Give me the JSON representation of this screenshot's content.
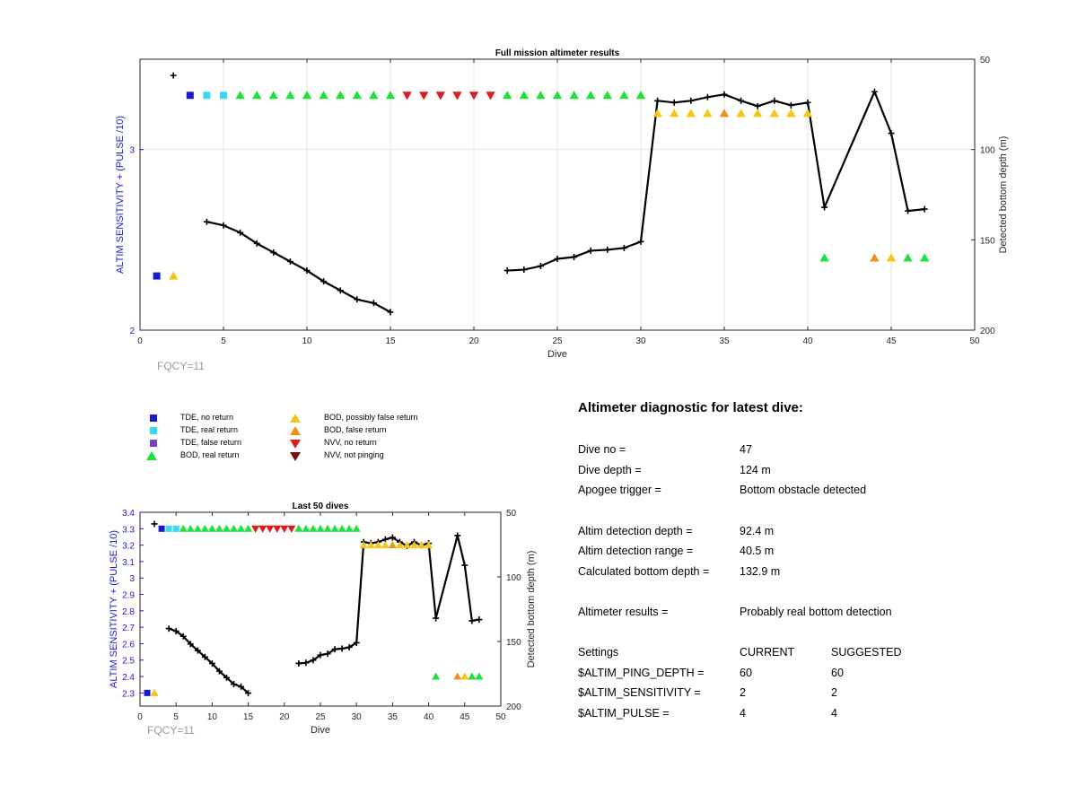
{
  "colors": {
    "tde_no_return": "#1a1acd",
    "tde_real_return": "#3ad9f2",
    "tde_false_return": "#7a3ec8",
    "bod_real_return": "#1ee23c",
    "bod_possibly_false": "#f5c518",
    "bod_false_return": "#f09018",
    "nvv_no_return": "#d81e1e",
    "nvv_not_pinging": "#7a0c0c",
    "depth_line": "#000000",
    "left_axis": "#1a1acd"
  },
  "legend": {
    "items": [
      {
        "label": "TDE, no return",
        "marker": "square",
        "color_key": "tde_no_return"
      },
      {
        "label": "TDE, real return",
        "marker": "square",
        "color_key": "tde_real_return"
      },
      {
        "label": "TDE, false return",
        "marker": "square",
        "color_key": "tde_false_return"
      },
      {
        "label": "BOD, real return",
        "marker": "triangle-up",
        "color_key": "bod_real_return"
      },
      {
        "label": "BOD, possibly false return",
        "marker": "triangle-up",
        "color_key": "bod_possibly_false"
      },
      {
        "label": "BOD, false return",
        "marker": "triangle-up",
        "color_key": "bod_false_return"
      },
      {
        "label": "NVV, no return",
        "marker": "triangle-down",
        "color_key": "nvv_no_return"
      },
      {
        "label": "NVV, not pinging",
        "marker": "triangle-down",
        "color_key": "nvv_not_pinging"
      }
    ]
  },
  "chart_data": [
    {
      "type": "scatter",
      "title": "Full mission altimeter results",
      "xlabel": "Dive",
      "ylabel": "ALTIM SENSITIVITY + (PULSE /10)",
      "y2label": "Detected bottom depth (m)",
      "annotation": "FQCY=11",
      "xlim": [
        0,
        50
      ],
      "ylim": [
        2,
        3.5
      ],
      "y2lim": [
        200,
        50
      ],
      "y2_reversed": true,
      "xticks": [
        0,
        5,
        10,
        15,
        20,
        25,
        30,
        35,
        40,
        45,
        50
      ],
      "yticks": [
        2,
        3
      ],
      "y2ticks": [
        50,
        100,
        150,
        200
      ],
      "grid": true
    },
    {
      "type": "scatter",
      "title": "Last 50 dives",
      "xlabel": "Dive",
      "ylabel": "ALTIM SENSITIVITY + (PULSE /10)",
      "y2label": "Detected bottom depth (m)",
      "annotation": "FQCY=11",
      "xlim": [
        0,
        50
      ],
      "ylim": [
        2.22,
        3.4
      ],
      "y2lim": [
        200,
        50
      ],
      "y2_reversed": true,
      "xticks": [
        0,
        5,
        10,
        15,
        20,
        25,
        30,
        35,
        40,
        45,
        50
      ],
      "yticks": [
        2.3,
        2.4,
        2.5,
        2.6,
        2.7,
        2.8,
        2.9,
        3,
        3.1,
        3.2,
        3.3,
        3.4
      ],
      "y2ticks": [
        50,
        100,
        150,
        200
      ],
      "grid": false
    }
  ],
  "series": {
    "markers": [
      {
        "dive": 1,
        "setting": 2.3,
        "status": "tde_no_return",
        "marker": "square"
      },
      {
        "dive": 2,
        "setting": 2.3,
        "status": "bod_possibly_false",
        "marker": "triangle-up"
      },
      {
        "dive": 3,
        "setting": 3.3,
        "status": "tde_no_return",
        "marker": "square"
      },
      {
        "dive": 4,
        "setting": 3.3,
        "status": "tde_real_return",
        "marker": "square"
      },
      {
        "dive": 5,
        "setting": 3.3,
        "status": "tde_real_return",
        "marker": "square"
      },
      {
        "dive": 6,
        "setting": 3.3,
        "status": "bod_real_return",
        "marker": "triangle-up"
      },
      {
        "dive": 7,
        "setting": 3.3,
        "status": "bod_real_return",
        "marker": "triangle-up"
      },
      {
        "dive": 8,
        "setting": 3.3,
        "status": "bod_real_return",
        "marker": "triangle-up"
      },
      {
        "dive": 9,
        "setting": 3.3,
        "status": "bod_real_return",
        "marker": "triangle-up"
      },
      {
        "dive": 10,
        "setting": 3.3,
        "status": "bod_real_return",
        "marker": "triangle-up"
      },
      {
        "dive": 11,
        "setting": 3.3,
        "status": "bod_real_return",
        "marker": "triangle-up"
      },
      {
        "dive": 12,
        "setting": 3.3,
        "status": "bod_real_return",
        "marker": "triangle-up"
      },
      {
        "dive": 13,
        "setting": 3.3,
        "status": "bod_real_return",
        "marker": "triangle-up"
      },
      {
        "dive": 14,
        "setting": 3.3,
        "status": "bod_real_return",
        "marker": "triangle-up"
      },
      {
        "dive": 15,
        "setting": 3.3,
        "status": "bod_real_return",
        "marker": "triangle-up"
      },
      {
        "dive": 16,
        "setting": 3.3,
        "status": "nvv_no_return",
        "marker": "triangle-down"
      },
      {
        "dive": 17,
        "setting": 3.3,
        "status": "nvv_no_return",
        "marker": "triangle-down"
      },
      {
        "dive": 18,
        "setting": 3.3,
        "status": "nvv_no_return",
        "marker": "triangle-down"
      },
      {
        "dive": 19,
        "setting": 3.3,
        "status": "nvv_no_return",
        "marker": "triangle-down"
      },
      {
        "dive": 20,
        "setting": 3.3,
        "status": "nvv_no_return",
        "marker": "triangle-down"
      },
      {
        "dive": 21,
        "setting": 3.3,
        "status": "nvv_no_return",
        "marker": "triangle-down"
      },
      {
        "dive": 22,
        "setting": 3.3,
        "status": "bod_real_return",
        "marker": "triangle-up"
      },
      {
        "dive": 23,
        "setting": 3.3,
        "status": "bod_real_return",
        "marker": "triangle-up"
      },
      {
        "dive": 24,
        "setting": 3.3,
        "status": "bod_real_return",
        "marker": "triangle-up"
      },
      {
        "dive": 25,
        "setting": 3.3,
        "status": "bod_real_return",
        "marker": "triangle-up"
      },
      {
        "dive": 26,
        "setting": 3.3,
        "status": "bod_real_return",
        "marker": "triangle-up"
      },
      {
        "dive": 27,
        "setting": 3.3,
        "status": "bod_real_return",
        "marker": "triangle-up"
      },
      {
        "dive": 28,
        "setting": 3.3,
        "status": "bod_real_return",
        "marker": "triangle-up"
      },
      {
        "dive": 29,
        "setting": 3.3,
        "status": "bod_real_return",
        "marker": "triangle-up"
      },
      {
        "dive": 30,
        "setting": 3.3,
        "status": "bod_real_return",
        "marker": "triangle-up"
      },
      {
        "dive": 31,
        "setting": 3.2,
        "status": "bod_possibly_false",
        "marker": "triangle-up"
      },
      {
        "dive": 32,
        "setting": 3.2,
        "status": "bod_possibly_false",
        "marker": "triangle-up"
      },
      {
        "dive": 33,
        "setting": 3.2,
        "status": "bod_possibly_false",
        "marker": "triangle-up"
      },
      {
        "dive": 34,
        "setting": 3.2,
        "status": "bod_possibly_false",
        "marker": "triangle-up"
      },
      {
        "dive": 35,
        "setting": 3.2,
        "status": "bod_false_return",
        "marker": "triangle-up"
      },
      {
        "dive": 36,
        "setting": 3.2,
        "status": "bod_possibly_false",
        "marker": "triangle-up"
      },
      {
        "dive": 37,
        "setting": 3.2,
        "status": "bod_possibly_false",
        "marker": "triangle-up"
      },
      {
        "dive": 38,
        "setting": 3.2,
        "status": "bod_possibly_false",
        "marker": "triangle-up"
      },
      {
        "dive": 39,
        "setting": 3.2,
        "status": "bod_possibly_false",
        "marker": "triangle-up"
      },
      {
        "dive": 40,
        "setting": 3.2,
        "status": "bod_possibly_false",
        "marker": "triangle-up"
      },
      {
        "dive": 41,
        "setting": 2.4,
        "status": "bod_real_return",
        "marker": "triangle-up"
      },
      {
        "dive": 44,
        "setting": 2.4,
        "status": "bod_false_return",
        "marker": "triangle-up"
      },
      {
        "dive": 45,
        "setting": 2.4,
        "status": "bod_possibly_false",
        "marker": "triangle-up"
      },
      {
        "dive": 46,
        "setting": 2.4,
        "status": "bod_real_return",
        "marker": "triangle-up"
      },
      {
        "dive": 47,
        "setting": 2.4,
        "status": "bod_real_return",
        "marker": "triangle-up"
      }
    ],
    "bottom_depth": [
      [
        [
          2,
          59
        ]
      ],
      [
        [
          4,
          140
        ],
        [
          5,
          142
        ],
        [
          6,
          146
        ],
        [
          7,
          152
        ],
        [
          8,
          157
        ],
        [
          9,
          162
        ],
        [
          10,
          167
        ],
        [
          11,
          173
        ],
        [
          12,
          178
        ],
        [
          13,
          183
        ],
        [
          14,
          185
        ],
        [
          15,
          190
        ]
      ],
      [
        [
          22,
          167
        ],
        [
          23,
          166.5
        ],
        [
          24,
          164.5
        ],
        [
          25,
          160.5
        ],
        [
          26,
          159.5
        ],
        [
          27,
          156
        ],
        [
          28,
          155.5
        ],
        [
          29,
          154.5
        ],
        [
          30,
          151
        ],
        [
          31,
          73
        ],
        [
          32,
          74
        ],
        [
          33,
          73
        ],
        [
          34,
          71
        ],
        [
          35,
          69.5
        ],
        [
          36,
          73
        ],
        [
          37,
          76
        ],
        [
          38,
          73
        ],
        [
          39,
          75.5
        ],
        [
          40,
          74
        ],
        [
          41,
          132
        ],
        [
          44,
          68
        ],
        [
          45,
          91
        ],
        [
          46,
          134
        ],
        [
          47,
          133
        ]
      ]
    ]
  },
  "diagnostic": {
    "title": "Altimeter diagnostic for latest dive:",
    "rows": [
      {
        "label": "Dive no =",
        "value": "47"
      },
      {
        "label": "Dive depth =",
        "value": "124 m"
      },
      {
        "label": "Apogee trigger =",
        "value": "Bottom obstacle detected"
      },
      {
        "label": "Altim detection depth =",
        "value": "92.4 m"
      },
      {
        "label": "Altim detection range =",
        "value": "40.5 m"
      },
      {
        "label": "Calculated bottom depth =",
        "value": "132.9 m"
      },
      {
        "label": "Altimeter results =",
        "value": "Probably real bottom detection"
      }
    ],
    "settings_header": {
      "label": "Settings",
      "current": "CURRENT",
      "suggested": "SUGGESTED"
    },
    "settings": [
      {
        "label": "$ALTIM_PING_DEPTH =",
        "current": "60",
        "suggested": "60"
      },
      {
        "label": "$ALTIM_SENSITIVITY =",
        "current": "2",
        "suggested": "2"
      },
      {
        "label": "$ALTIM_PULSE =",
        "current": "4",
        "suggested": "4"
      }
    ]
  }
}
